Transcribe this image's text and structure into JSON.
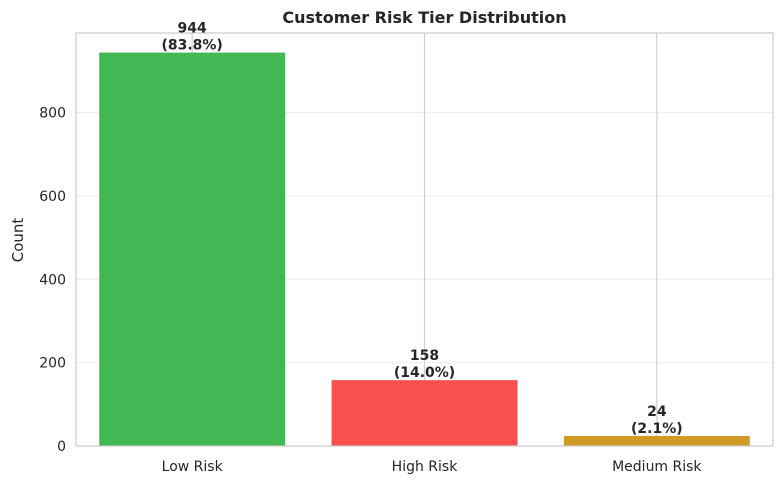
{
  "chart_data": {
    "type": "bar",
    "title": "Customer Risk Tier Distribution",
    "xlabel": "",
    "ylabel": "Count",
    "categories": [
      "Low Risk",
      "High Risk",
      "Medium Risk"
    ],
    "values": [
      944,
      158,
      24
    ],
    "value_labels": [
      "944",
      "158",
      "24"
    ],
    "percent_labels": [
      "(83.8%)",
      "(14.0%)",
      "(2.1%)"
    ],
    "colors": [
      "#41b853",
      "#f9504f",
      "#d19a27"
    ],
    "ylim": [
      0,
      991
    ],
    "yticks": [
      0,
      200,
      400,
      600,
      800
    ],
    "ytick_labels": [
      "0",
      "200",
      "400",
      "600",
      "800"
    ],
    "grid": true,
    "legend": "none"
  }
}
